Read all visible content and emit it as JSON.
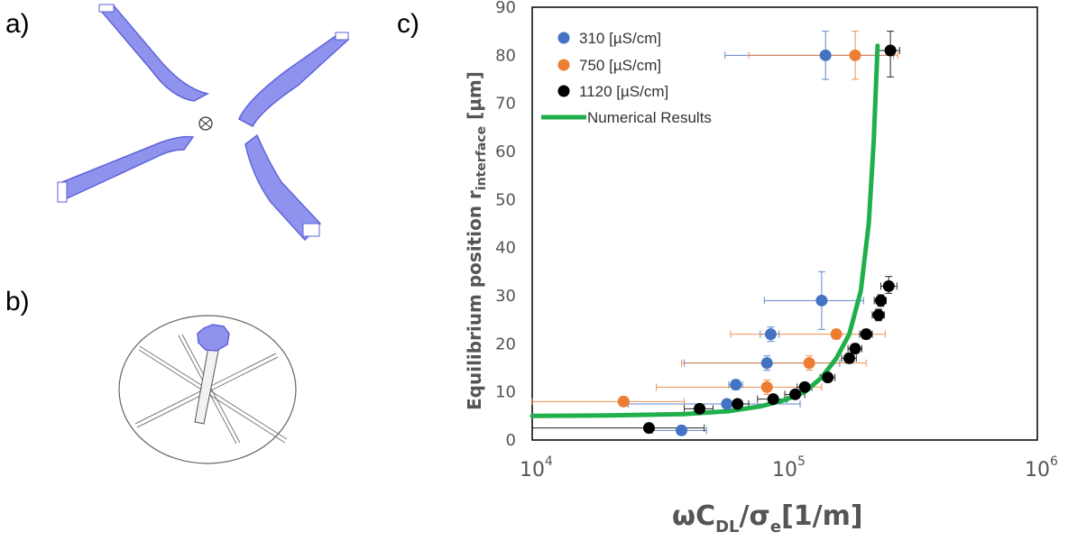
{
  "panels": {
    "a": "a)",
    "b": "b)",
    "c": "c)"
  },
  "colors": {
    "s310": "#4472C4",
    "s750": "#ED7D31",
    "s1120": "#000000",
    "numerical": "#1FAF4B",
    "channel_fill": "#8F93EE",
    "channel_stroke": "#5E63D9"
  },
  "chart_data": {
    "type": "scatter",
    "xscale": "log",
    "xlim": [
      10000,
      1000000
    ],
    "ylim": [
      0,
      90
    ],
    "yticks": [
      0,
      10,
      20,
      30,
      40,
      50,
      60,
      70,
      80,
      90
    ],
    "xticks": [
      {
        "value": 10000,
        "base": "10",
        "exp": "4"
      },
      {
        "value": 100000,
        "base": "10",
        "exp": "5"
      },
      {
        "value": 1000000,
        "base": "10",
        "exp": "6"
      }
    ],
    "ylabel_main": "Equilibrium position r",
    "ylabel_sub": "interface",
    "ylabel_unit": " [µm]",
    "xlabel_parts": [
      "ωC",
      "DL",
      "/σ",
      "e",
      "[1/m]"
    ],
    "legend_position": "top-left",
    "series": [
      {
        "name": "310",
        "unit": "[µS/cm]",
        "color": "#4472C4",
        "points": [
          {
            "x": 145000,
            "y": 80,
            "xlo": 58000,
            "xhi": 270000,
            "ylo": 75,
            "yhi": 85
          },
          {
            "x": 140000,
            "y": 29,
            "xlo": 83000,
            "xhi": 205000,
            "ylo": 23,
            "yhi": 35
          },
          {
            "x": 88000,
            "y": 22,
            "xlo": 80000,
            "xhi": 95000,
            "ylo": 20.5,
            "yhi": 23.5
          },
          {
            "x": 85000,
            "y": 16,
            "xlo": 40000,
            "xhi": 165000,
            "ylo": 14.5,
            "yhi": 17.5
          },
          {
            "x": 64000,
            "y": 11.5,
            "xlo": 60000,
            "xhi": 68000,
            "ylo": 10.5,
            "yhi": 12.5
          },
          {
            "x": 59000,
            "y": 7.5,
            "xlo": 24000,
            "xhi": 115000,
            "ylo": 6.8,
            "yhi": 8.2
          },
          {
            "x": 39000,
            "y": 2,
            "xlo": 30000,
            "xhi": 49000,
            "ylo": 1,
            "yhi": 3
          }
        ]
      },
      {
        "name": "750",
        "unit": "[µS/cm]",
        "color": "#ED7D31",
        "points": [
          {
            "x": 190000,
            "y": 80,
            "xlo": 72000,
            "xhi": 280000,
            "ylo": 75,
            "yhi": 85
          },
          {
            "x": 160000,
            "y": 22,
            "xlo": 61000,
            "xhi": 250000,
            "ylo": 21,
            "yhi": 23
          },
          {
            "x": 125000,
            "y": 16,
            "xlo": 39000,
            "xhi": 210000,
            "ylo": 14.5,
            "yhi": 17.5
          },
          {
            "x": 85000,
            "y": 11,
            "xlo": 31000,
            "xhi": 140000,
            "ylo": 9.5,
            "yhi": 12.5
          },
          {
            "x": 23000,
            "y": 8,
            "xlo": 10000,
            "xhi": 40000,
            "ylo": 7,
            "yhi": 9
          }
        ]
      },
      {
        "name": "1120",
        "unit": "[µS/cm]",
        "color": "#000000",
        "points": [
          {
            "x": 262000,
            "y": 81,
            "xlo": 230000,
            "xhi": 285000,
            "ylo": 75.5,
            "yhi": 85
          },
          {
            "x": 258000,
            "y": 32,
            "xlo": 240000,
            "xhi": 278000,
            "ylo": 30.5,
            "yhi": 34
          },
          {
            "x": 240000,
            "y": 29,
            "xlo": 226000,
            "xhi": 252000,
            "ylo": 27.8,
            "yhi": 30.2
          },
          {
            "x": 235000,
            "y": 26,
            "xlo": 222000,
            "xhi": 248000,
            "ylo": 24.8,
            "yhi": 27.2
          },
          {
            "x": 210000,
            "y": 22,
            "xlo": 198000,
            "xhi": 222000,
            "ylo": 21,
            "yhi": 23
          },
          {
            "x": 190000,
            "y": 19,
            "xlo": 178000,
            "xhi": 202000,
            "ylo": 18,
            "yhi": 20
          },
          {
            "x": 180000,
            "y": 17,
            "xlo": 168000,
            "xhi": 192000,
            "ylo": 16,
            "yhi": 18
          },
          {
            "x": 148000,
            "y": 13,
            "xlo": 138000,
            "xhi": 158000,
            "ylo": 12.2,
            "yhi": 13.8
          },
          {
            "x": 120000,
            "y": 11,
            "xlo": 112000,
            "xhi": 128000,
            "ylo": 10.3,
            "yhi": 11.7
          },
          {
            "x": 110000,
            "y": 9.5,
            "xlo": 100000,
            "xhi": 120000,
            "ylo": 9,
            "yhi": 10
          },
          {
            "x": 90000,
            "y": 8.5,
            "xlo": 78000,
            "xhi": 102000,
            "ylo": 8,
            "yhi": 9
          },
          {
            "x": 65000,
            "y": 7.5,
            "xlo": 58000,
            "xhi": 72000,
            "ylo": 7,
            "yhi": 8
          },
          {
            "x": 46000,
            "y": 6.5,
            "xlo": 40000,
            "xhi": 52000,
            "ylo": 6,
            "yhi": 7
          },
          {
            "x": 29000,
            "y": 2.5,
            "xlo": 10000,
            "xhi": 48000,
            "ylo": 2.3,
            "yhi": 2.7
          }
        ]
      },
      {
        "name": "Numerical Results",
        "color": "#1FAF4B",
        "line": true,
        "points": [
          {
            "x": 10000,
            "y": 5
          },
          {
            "x": 20000,
            "y": 5.1
          },
          {
            "x": 40000,
            "y": 5.4
          },
          {
            "x": 60000,
            "y": 6
          },
          {
            "x": 80000,
            "y": 7
          },
          {
            "x": 100000,
            "y": 8.3
          },
          {
            "x": 120000,
            "y": 10
          },
          {
            "x": 140000,
            "y": 13
          },
          {
            "x": 160000,
            "y": 17
          },
          {
            "x": 180000,
            "y": 22
          },
          {
            "x": 200000,
            "y": 31
          },
          {
            "x": 215000,
            "y": 45
          },
          {
            "x": 225000,
            "y": 62
          },
          {
            "x": 233000,
            "y": 82
          }
        ]
      }
    ]
  }
}
